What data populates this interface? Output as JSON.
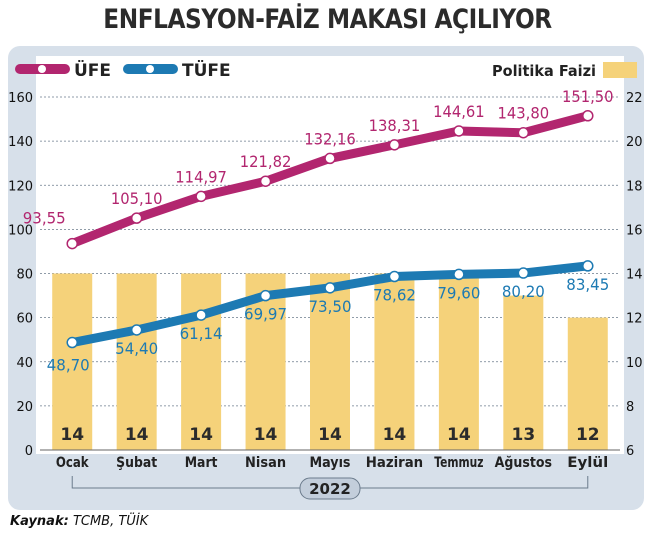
{
  "title": "ENFLASYON-FAİZ MAKASI AÇILIYOR",
  "source": {
    "label": "Kaynak:",
    "text": "TCMB, TÜİK"
  },
  "colors": {
    "ufe": "#b2266f",
    "tufe": "#1d7ab3",
    "bar": "#f5d27a",
    "band": "#d7e0ea",
    "grid": "#6b7b8c"
  },
  "chart_data": {
    "type": "bar+line",
    "categories": [
      "Ocak",
      "Şubat",
      "Mart",
      "Nisan",
      "Mayıs",
      "Haziran",
      "Temmuz",
      "Ağustos",
      "Eylül"
    ],
    "year_label": "2022",
    "left_axis": {
      "ylim": [
        0,
        160
      ],
      "ticks": [
        "0",
        "20",
        "40",
        "60",
        "80",
        "100",
        "120",
        "140",
        "160"
      ]
    },
    "right_axis": {
      "ylim": [
        6,
        22
      ],
      "ticks": [
        "6",
        "8",
        "10",
        "12",
        "14",
        "16",
        "18",
        "20",
        "22"
      ]
    },
    "bars": {
      "name": "Politika Faizi",
      "axis": "right",
      "values": [
        14,
        14,
        14,
        14,
        14,
        14,
        14,
        13,
        12
      ],
      "labels": [
        "14",
        "14",
        "14",
        "14",
        "14",
        "14",
        "14",
        "13",
        "12"
      ]
    },
    "series": [
      {
        "name": "ÜFE",
        "axis": "left",
        "values": [
          93.55,
          105.1,
          114.97,
          121.82,
          132.16,
          138.31,
          144.61,
          143.8,
          151.5
        ],
        "labels": [
          "93,55",
          "105,10",
          "114,97",
          "121,82",
          "132,16",
          "138,31",
          "144,61",
          "143,80",
          "151,50"
        ]
      },
      {
        "name": "TÜFE",
        "axis": "left",
        "values": [
          48.7,
          54.4,
          61.14,
          69.97,
          73.5,
          78.62,
          79.6,
          80.2,
          83.45
        ],
        "labels": [
          "48,70",
          "54,40",
          "61,14",
          "69,97",
          "73,50",
          "78,62",
          "79,60",
          "80,20",
          "83,45"
        ]
      }
    ],
    "legend_placement": "top",
    "grid": true
  }
}
